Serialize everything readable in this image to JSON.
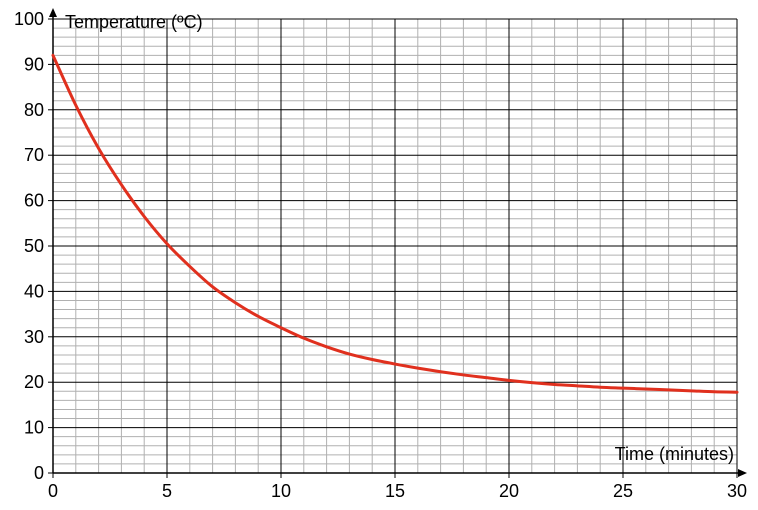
{
  "chart_data": {
    "type": "line",
    "xlabel": "Time (minutes)",
    "ylabel": "Temperature (ºC)",
    "xlim": [
      0,
      30
    ],
    "ylim": [
      0,
      100
    ],
    "x_ticks": [
      0,
      5,
      10,
      15,
      20,
      25,
      30
    ],
    "y_ticks": [
      0,
      10,
      20,
      30,
      40,
      50,
      60,
      70,
      80,
      90,
      100
    ],
    "x_minor_step": 1,
    "y_minor_step": 2,
    "grid": true,
    "series": [
      {
        "color": "#e0301e",
        "x": [
          0,
          1,
          2,
          3,
          4,
          5,
          6,
          7,
          8,
          9,
          10,
          11,
          12,
          13,
          14,
          15,
          16,
          17,
          18,
          19,
          20,
          21,
          22,
          23,
          24,
          25,
          26,
          27,
          28,
          29,
          30
        ],
        "y": [
          92,
          81,
          71.5,
          63.5,
          56.5,
          50.5,
          45.5,
          41,
          37.5,
          34.5,
          32,
          29.7,
          27.8,
          26.2,
          25,
          24,
          23.1,
          22.3,
          21.6,
          21,
          20.4,
          19.9,
          19.5,
          19.2,
          18.9,
          18.7,
          18.5,
          18.3,
          18.1,
          17.9,
          17.8
        ]
      }
    ]
  },
  "colors": {
    "major_grid": "#000000",
    "minor_grid": "#b0b0b0",
    "axis": "#000000"
  }
}
